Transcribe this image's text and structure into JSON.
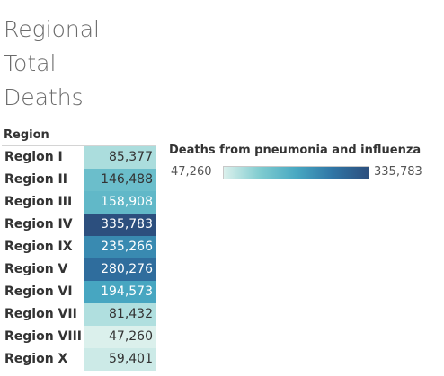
{
  "title": {
    "line1": "Regional",
    "line2": "Total",
    "line3": "Deaths"
  },
  "column_header": "Region",
  "legend": {
    "title": "Deaths from pneumonia and influenza",
    "min_label": "47,260",
    "max_label": "335,783",
    "color_low": "#dbf0ec",
    "color_high": "#2c4f7e"
  },
  "chart_data": {
    "type": "heatmap",
    "title": "Regional Total Deaths",
    "row_header": "Region",
    "legend_title": "Deaths from pneumonia and influenza",
    "color_range": [
      47260,
      335783
    ],
    "rows": [
      {
        "label": "Region I",
        "value": 85377,
        "display": "85,377"
      },
      {
        "label": "Region II",
        "value": 146488,
        "display": "146,488"
      },
      {
        "label": "Region III",
        "value": 158908,
        "display": "158,908"
      },
      {
        "label": "Region IV",
        "value": 335783,
        "display": "335,783"
      },
      {
        "label": "Region IX",
        "value": 235266,
        "display": "235,266"
      },
      {
        "label": "Region V",
        "value": 280276,
        "display": "280,276"
      },
      {
        "label": "Region VI",
        "value": 194573,
        "display": "194,573"
      },
      {
        "label": "Region VII",
        "value": 81432,
        "display": "81,432"
      },
      {
        "label": "Region VIII",
        "value": 47260,
        "display": "47,260"
      },
      {
        "label": "Region X",
        "value": 59401,
        "display": "59,401"
      }
    ]
  }
}
